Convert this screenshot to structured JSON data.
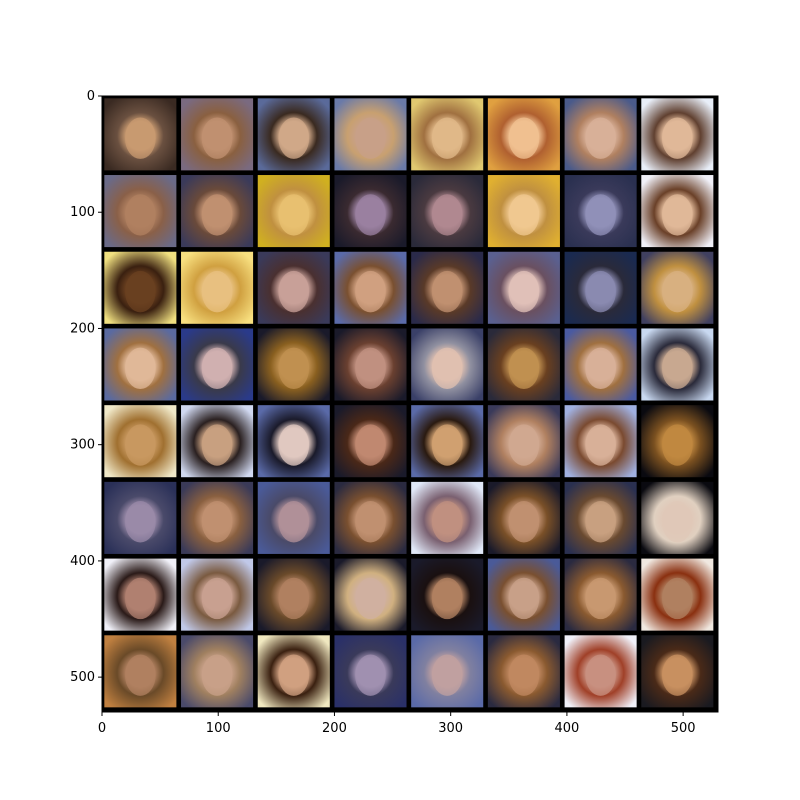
{
  "image": {
    "grid": {
      "rows": 8,
      "cols": 8
    },
    "tile_size_units": 66,
    "separator_color": "#000000",
    "axes": {
      "x_ticks": [
        0,
        100,
        200,
        300,
        400,
        500
      ],
      "y_ticks": [
        0,
        100,
        200,
        300,
        400,
        500
      ],
      "x_range": [
        0,
        530
      ],
      "y_range": [
        0,
        530
      ]
    },
    "tiles": [
      [
        [
          "#3a2a22",
          "#c89a70",
          "#6a5040"
        ],
        [
          "#7a6a80",
          "#c09070",
          "#8a6040"
        ],
        [
          "#5a6a9a",
          "#d0a888",
          "#3a2a20"
        ],
        [
          "#6a7aa8",
          "#c8a088",
          "#c8a070"
        ],
        [
          "#e0c870",
          "#e0b888",
          "#a07040"
        ],
        [
          "#e0a040",
          "#f0c090",
          "#b06030"
        ],
        [
          "#4a5a8a",
          "#d8b098",
          "#b08060"
        ],
        [
          "#e8eef8",
          "#e0b898",
          "#604030"
        ]
      ],
      [
        [
          "#6a6a88",
          "#b08060",
          "#8a6048"
        ],
        [
          "#3a3a5a",
          "#c09070",
          "#6a4a3a"
        ],
        [
          "#d0b020",
          "#e8c070",
          "#c09040"
        ],
        [
          "#1a1a2a",
          "#9a80a0",
          "#3a2a30"
        ],
        [
          "#2a2a3a",
          "#b08890",
          "#4a3a40"
        ],
        [
          "#e0b030",
          "#f0c890",
          "#c09040"
        ],
        [
          "#2a3050",
          "#9090b8",
          "#3a3a5a"
        ],
        [
          "#f0f0f8",
          "#e0b898",
          "#6a4028"
        ]
      ],
      [
        [
          "#f0e080",
          "#6a4020",
          "#3a2010"
        ],
        [
          "#f8e080",
          "#e8c080",
          "#d0a040"
        ],
        [
          "#3a3a5a",
          "#c8a098",
          "#4a3030"
        ],
        [
          "#5a6aa8",
          "#d0a080",
          "#7a5030"
        ],
        [
          "#2a2a4a",
          "#c09070",
          "#5a3a28"
        ],
        [
          "#5a6090",
          "#e0c0b8",
          "#6a5060"
        ],
        [
          "#1a2a50",
          "#8a8ab0",
          "#2a2a3a"
        ],
        [
          "#404060",
          "#d8b080",
          "#c09040"
        ]
      ],
      [
        [
          "#5a6aa0",
          "#e0b898",
          "#a07040"
        ],
        [
          "#2a3a8a",
          "#d0b0b0",
          "#3a3a4a"
        ],
        [
          "#1a1a2a",
          "#c09050",
          "#8a6020"
        ],
        [
          "#1a1a2a",
          "#c09080",
          "#6a4030"
        ],
        [
          "#3a4068",
          "#e0c0b0",
          "#9090a0"
        ],
        [
          "#2a2a3a",
          "#c09050",
          "#6a4020"
        ],
        [
          "#4a5aa0",
          "#d8b098",
          "#a07040"
        ],
        [
          "#c8d8f0",
          "#c8a890",
          "#2a2a3a"
        ]
      ],
      [
        [
          "#f0e8c8",
          "#c89860",
          "#a07030"
        ],
        [
          "#d0d8f0",
          "#c8a080",
          "#2a2020"
        ],
        [
          "#5a6aa8",
          "#e0c8c0",
          "#1a1a2a"
        ],
        [
          "#1a1a2a",
          "#c08870",
          "#4a2818"
        ],
        [
          "#5a6aa8",
          "#d0a070",
          "#2a1a10"
        ],
        [
          "#3a3a5a",
          "#d0a890",
          "#b08060"
        ],
        [
          "#a0b0e0",
          "#d8b098",
          "#7a4a30"
        ],
        [
          "#0a0a10",
          "#c08840",
          "#7a5020"
        ]
      ],
      [
        [
          "#2a3058",
          "#9a8aa8",
          "#4a4a6a"
        ],
        [
          "#3a3a58",
          "#c09070",
          "#8a6040"
        ],
        [
          "#4a5a98",
          "#b09098",
          "#4a4a68"
        ],
        [
          "#2a2a40",
          "#c09070",
          "#7a5030"
        ],
        [
          "#e0e8f8",
          "#c09080",
          "#7a6070"
        ],
        [
          "#1a1a2a",
          "#c09070",
          "#7a5028"
        ],
        [
          "#2a3050",
          "#c8a080",
          "#6a4a30"
        ],
        [
          "#0a0a10",
          "#e0c8b8",
          "#e0d0c0"
        ]
      ],
      [
        [
          "#f0f0f8",
          "#b08070",
          "#2a1a18"
        ],
        [
          "#c0c8e8",
          "#c8a090",
          "#7a5a40"
        ],
        [
          "#1a1a2a",
          "#b08060",
          "#6a4a2a"
        ],
        [
          "#1a1a2a",
          "#d0b0a0",
          "#d0b080"
        ],
        [
          "#1a1a2a",
          "#b08060",
          "#1a1010"
        ],
        [
          "#4a5a98",
          "#c8a088",
          "#7a5030"
        ],
        [
          "#2a2a40",
          "#c89870",
          "#8a5a30"
        ],
        [
          "#f0e8e0",
          "#b08060",
          "#8a3010"
        ]
      ],
      [
        [
          "#c08040",
          "#b08060",
          "#6a4a28"
        ],
        [
          "#4a4a6a",
          "#c8a088",
          "#a08060"
        ],
        [
          "#f0e8c0",
          "#d0a080",
          "#3a2010"
        ],
        [
          "#2a3068",
          "#a090b0",
          "#3a3a5a"
        ],
        [
          "#5a6aa8",
          "#c0a0a0",
          "#8080a0"
        ],
        [
          "#2a2a40",
          "#c08860",
          "#8a5a30"
        ],
        [
          "#f0f0f8",
          "#c89080",
          "#a04028"
        ],
        [
          "#1a1a20",
          "#c89060",
          "#4a2a18"
        ]
      ]
    ]
  }
}
